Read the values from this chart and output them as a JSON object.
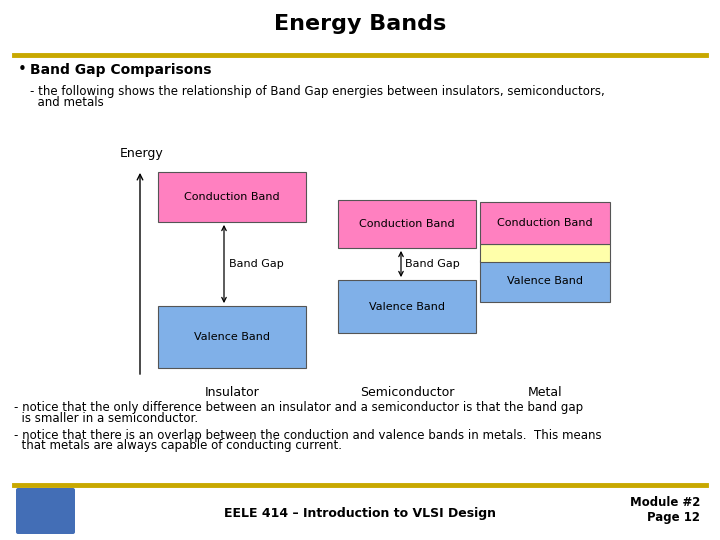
{
  "title": "Energy Bands",
  "title_fontsize": 16,
  "bg_color": "#ffffff",
  "header_line_color": "#C8A800",
  "footer_line_color": "#C8A800",
  "bullet_heading": "Band Gap Comparisons",
  "sub_text1a": "- the following shows the relationship of Band Gap energies between insulators, semiconductors,",
  "sub_text1b": "  and metals",
  "sub_text2a": "- notice that the only difference between an insulator and a semiconductor is that the band gap",
  "sub_text2b": "  is smaller in a semiconductor.",
  "sub_text3a": "- notice that there is an overlap between the conduction and valence bands in metals.  This means",
  "sub_text3b": "  that metals are always capable of conducting current.",
  "footer_text": "EELE 414 – Introduction to VLSI Design",
  "footer_right1": "Module #2",
  "footer_right2": "Page 12",
  "pink_color": "#FF80C0",
  "blue_color": "#80B0E8",
  "yellow_color": "#FFFFAA",
  "insulator_label": "Insulator",
  "semiconductor_label": "Semiconductor",
  "metal_label": "Metal",
  "conduction_band_label": "Conduction Band",
  "valence_band_label": "Valence Band",
  "band_gap_label": "Band Gap",
  "energy_label": "Energy",
  "text_fontsize": 8.5,
  "band_fontsize": 8,
  "label_fontsize": 9
}
